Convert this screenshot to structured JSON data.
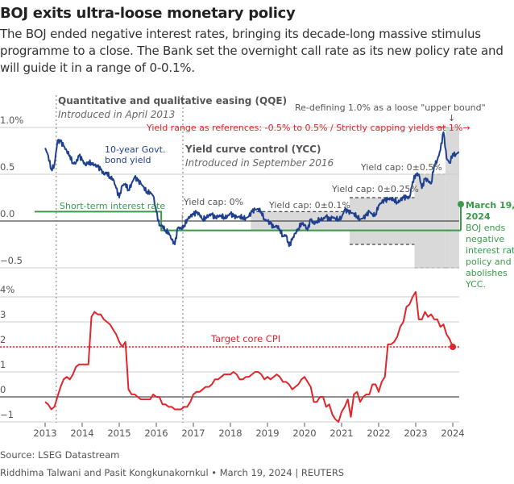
{
  "title": "BOJ exits ultra-loose monetary policy",
  "subtitle": "The BOJ ended negative interest rates, bringing its decade-long massive stimulus programme to a close. The Bank set the overnight call rate as its new policy rate and will guide it in a range of 0-0.1%.",
  "source": "Source: LSEG Datastream",
  "byline": "Riddhima Talwani and Pasit Kongkunakornkul • March 19, 2024 | REUTERS",
  "colors": {
    "yield": "#1f3f8f",
    "short_rate": "#3a9a4a",
    "cpi": "#e0262b",
    "band": "#d9d9d9",
    "annotation_red": "#e0262b"
  },
  "annotations": {
    "qqe_title": "Quantitative and qualitative easing (QQE)",
    "qqe_sub": "Introduced in April 2013",
    "ycc_title": "Yield curve control (YCC)",
    "ycc_sub": "Introduced in September 2016",
    "upper_bound": "Re-defining 1.0% as a loose \"upper bound\"",
    "upper_arrow": "↓",
    "yield_range": "Yield range as references: -0.5% to 0.5% / Strictly capping yields at 1%→",
    "yield_label_1": "10-year Govt.",
    "yield_label_2": "bond yield",
    "short_rate_label": "Short-term interest rate",
    "cap0": "Yield cap: 0%",
    "cap01": "Yield cap: 0±0.1%",
    "cap025": "Yield cap: 0±0.25%",
    "cap05": "Yield cap: 0±0.5%",
    "mar_1": "March 19,",
    "mar_2": "2024",
    "mar_3": "BOJ ends",
    "mar_4": "negative",
    "mar_5": "interest rate",
    "mar_6": "policy and",
    "mar_7": "abolishes",
    "mar_8": "YCC.",
    "target_cpi": "Target core CPI"
  },
  "chart_data": [
    {
      "type": "line",
      "panel": "top",
      "ylim": [
        -0.5,
        1.0
      ],
      "yticks": [
        {
          "v": 1.0,
          "label": "1.0%"
        },
        {
          "v": 0.5,
          "label": "0.5"
        },
        {
          "v": 0.0,
          "label": "0.0"
        },
        {
          "v": -0.5,
          "label": "−0.5"
        }
      ],
      "grid": true,
      "series": [
        {
          "name": "10-year Govt. bond yield",
          "start": "2013-01",
          "values": [
            0.78,
            0.7,
            0.55,
            0.6,
            0.85,
            0.85,
            0.8,
            0.75,
            0.7,
            0.62,
            0.62,
            0.7,
            0.65,
            0.6,
            0.63,
            0.62,
            0.6,
            0.58,
            0.55,
            0.5,
            0.52,
            0.47,
            0.45,
            0.35,
            0.25,
            0.38,
            0.4,
            0.33,
            0.4,
            0.47,
            0.43,
            0.4,
            0.36,
            0.31,
            0.31,
            0.27,
            0.1,
            -0.05,
            -0.05,
            -0.1,
            -0.12,
            -0.2,
            -0.25,
            -0.07,
            -0.08,
            -0.05,
            0.02,
            0.05,
            0.07,
            0.09,
            0.07,
            0.02,
            0.04,
            0.06,
            0.07,
            0.03,
            0.05,
            0.06,
            0.04,
            0.05,
            0.08,
            0.05,
            0.04,
            0.05,
            0.04,
            0.03,
            0.05,
            0.1,
            0.12,
            0.13,
            0.1,
            0.02,
            0.0,
            -0.03,
            -0.07,
            -0.05,
            -0.09,
            -0.16,
            -0.15,
            -0.27,
            -0.2,
            -0.13,
            -0.08,
            -0.02,
            -0.04,
            -0.1,
            0.02,
            -0.03,
            0.0,
            0.02,
            0.02,
            0.05,
            0.01,
            0.04,
            0.03,
            0.02,
            0.04,
            0.12,
            0.1,
            0.09,
            0.08,
            0.05,
            0.02,
            0.03,
            0.06,
            0.1,
            0.07,
            0.07,
            0.17,
            0.2,
            0.22,
            0.23,
            0.24,
            0.23,
            0.2,
            0.22,
            0.25,
            0.25,
            0.25,
            0.42,
            0.5,
            0.5,
            0.35,
            0.45,
            0.43,
            0.4,
            0.6,
            0.65,
            0.76,
            0.95,
            0.67,
            0.62,
            0.72,
            0.71,
            0.74
          ]
        },
        {
          "name": "Short-term interest rate",
          "steps": [
            {
              "date": "2012-09",
              "value": 0.1
            },
            {
              "date": "2016-02",
              "value": -0.1
            },
            {
              "date": "2024-03",
              "value": -0.1
            }
          ]
        }
      ],
      "bands": [
        {
          "label": "Yield cap: 0±0.1%",
          "start": "2018-07",
          "end": "2021-03",
          "low": -0.1,
          "high": 0.1
        },
        {
          "label": "Yield cap: 0±0.25%",
          "start": "2021-03",
          "end": "2022-12",
          "low": -0.25,
          "high": 0.25
        },
        {
          "label": "Yield cap: 0±0.5%",
          "start": "2022-12",
          "end": "2023-10",
          "low": -0.5,
          "high": 0.5
        },
        {
          "label": "1.0% loose upper bound",
          "start": "2023-10",
          "end": "2024-03",
          "low": -0.5,
          "high": 1.0
        }
      ],
      "strict_cap": {
        "start": "2023-07",
        "end": "2023-10",
        "value": 1.0
      },
      "events": [
        {
          "label": "QQE",
          "date": "2013-04"
        },
        {
          "label": "YCC",
          "date": "2016-09"
        }
      ]
    },
    {
      "type": "line",
      "panel": "bottom",
      "ylim": [
        -1,
        4
      ],
      "yticks": [
        {
          "v": 4,
          "label": "4%"
        },
        {
          "v": 3,
          "label": "3"
        },
        {
          "v": 2,
          "label": "2"
        },
        {
          "v": 1,
          "label": "1"
        },
        {
          "v": 0,
          "label": "0"
        },
        {
          "v": -1,
          "label": "−1"
        }
      ],
      "xticks": [
        "2013",
        "2014",
        "2015",
        "2016",
        "2017",
        "2018",
        "2019",
        "2020",
        "2021",
        "2022",
        "2023",
        "2024"
      ],
      "target": 2,
      "series": [
        {
          "name": "Core CPI",
          "start": "2013-01",
          "values": [
            -0.2,
            -0.3,
            -0.5,
            -0.4,
            0.0,
            0.4,
            0.7,
            0.8,
            0.7,
            0.9,
            1.2,
            1.3,
            1.3,
            1.3,
            1.3,
            3.2,
            3.4,
            3.3,
            3.3,
            3.1,
            3.0,
            2.9,
            2.7,
            2.5,
            2.2,
            2.0,
            2.2,
            0.3,
            0.1,
            0.1,
            0.0,
            -0.1,
            -0.1,
            -0.1,
            -0.1,
            0.1,
            0.0,
            0.0,
            -0.3,
            -0.3,
            -0.4,
            -0.4,
            -0.5,
            -0.5,
            -0.5,
            -0.4,
            -0.4,
            -0.2,
            0.1,
            0.2,
            0.2,
            0.3,
            0.4,
            0.4,
            0.5,
            0.7,
            0.7,
            0.8,
            0.9,
            0.9,
            0.9,
            1.0,
            0.9,
            0.7,
            0.7,
            0.8,
            0.8,
            0.9,
            1.0,
            1.0,
            0.9,
            0.7,
            0.8,
            0.7,
            0.8,
            0.9,
            0.8,
            0.6,
            0.6,
            0.5,
            0.3,
            0.4,
            0.5,
            0.7,
            0.8,
            0.6,
            0.4,
            -0.2,
            -0.2,
            0.0,
            0.0,
            -0.4,
            -0.3,
            -0.7,
            -0.9,
            -1.0,
            -0.6,
            -0.4,
            -0.1,
            -0.8,
            0.1,
            0.2,
            -0.2,
            0.0,
            0.1,
            0.1,
            0.5,
            0.5,
            0.2,
            0.6,
            0.8,
            2.1,
            2.1,
            2.2,
            2.4,
            2.8,
            3.0,
            3.6,
            3.7,
            4.0,
            4.2,
            3.1,
            3.1,
            3.4,
            3.2,
            3.3,
            3.1,
            3.1,
            2.8,
            2.9,
            2.5,
            2.3,
            2.0
          ]
        }
      ]
    }
  ]
}
